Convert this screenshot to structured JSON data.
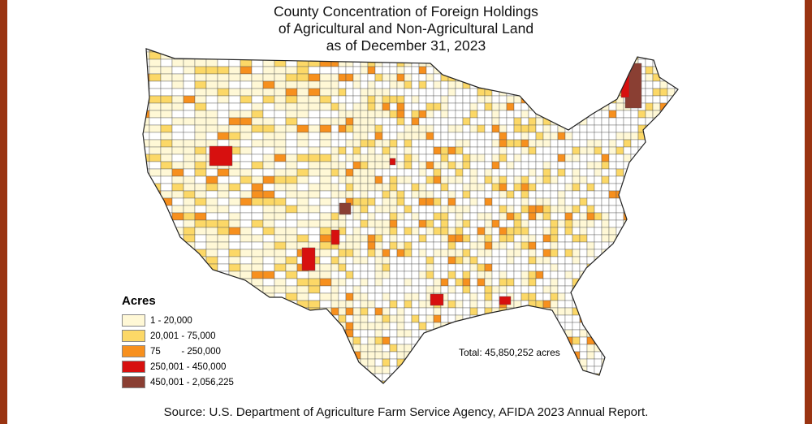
{
  "title": [
    "County Concentration of Foreign Holdings",
    "of Agricultural and Non-Agricultural Land",
    "as of December 31, 2023"
  ],
  "legend": {
    "title": "Acres",
    "items": [
      {
        "label": "1 - 20,000",
        "color": "#fff8d6"
      },
      {
        "label": "20,001 - 75,000",
        "color": "#fcd867"
      },
      {
        "label": "75        - 250,000",
        "color": "#f7901e"
      },
      {
        "label": "250,001 - 450,000",
        "color": "#d7100f"
      },
      {
        "label": "450,001 - 2,056,225",
        "color": "#8a3f33"
      }
    ]
  },
  "total": "Total: 45,850,252 acres",
  "source": "Source: U.S. Department of Agriculture Farm Service Agency, AFIDA 2023 Annual Report.",
  "colors": {
    "frame": "#9a3412",
    "no_holdings": "#ffffff",
    "county_border": "#555555"
  }
}
